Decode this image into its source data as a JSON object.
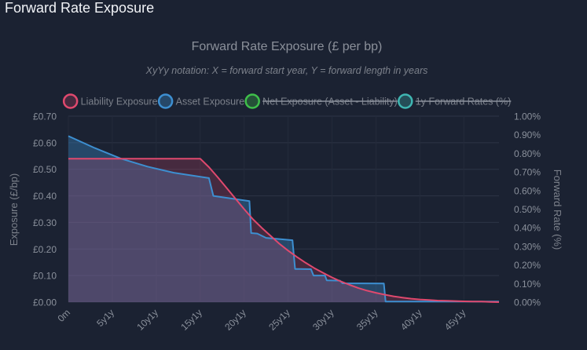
{
  "panel": {
    "title": "Forward Rate Exposure"
  },
  "chart_data": {
    "type": "line",
    "title": "Forward Rate Exposure (£ per bp)",
    "subtitle": "XyYy notation: X = forward start year, Y = forward length in years",
    "ylabel": "Exposure (£/bp)",
    "y2label": "Forward Rate (%)",
    "ylim": [
      0,
      0.7
    ],
    "y2lim": [
      0,
      1.0
    ],
    "yticks": [
      "£0.00",
      "£0.10",
      "£0.20",
      "£0.30",
      "£0.40",
      "£0.50",
      "£0.60",
      "£0.70"
    ],
    "y2ticks": [
      "0.00%",
      "0.10%",
      "0.20%",
      "0.30%",
      "0.40%",
      "0.50%",
      "0.60%",
      "0.70%",
      "0.80%",
      "0.90%",
      "1.00%"
    ],
    "xticks": [
      "0m",
      "5y1y",
      "10y1y",
      "15y1y",
      "20y1y",
      "25y1y",
      "30y1y",
      "35y1y",
      "40y1y",
      "45y1y"
    ],
    "xmax": 49,
    "legend_position": "top",
    "series": [
      {
        "name": "Liability Exposure",
        "color": "#e0496e",
        "fill": "rgba(224,73,110,0.22)",
        "hidden": false,
        "points": [
          [
            0,
            0.54
          ],
          [
            15,
            0.54
          ],
          [
            16,
            0.508
          ],
          [
            17,
            0.47
          ],
          [
            18,
            0.43
          ],
          [
            19,
            0.39
          ],
          [
            20,
            0.35
          ],
          [
            21,
            0.312
          ],
          [
            22,
            0.28
          ],
          [
            23,
            0.25
          ],
          [
            24,
            0.22
          ],
          [
            25,
            0.194
          ],
          [
            26,
            0.17
          ],
          [
            27,
            0.148
          ],
          [
            28,
            0.128
          ],
          [
            29,
            0.11
          ],
          [
            30,
            0.093
          ],
          [
            31,
            0.078
          ],
          [
            32,
            0.065
          ],
          [
            33,
            0.053
          ],
          [
            34,
            0.043
          ],
          [
            35,
            0.035
          ],
          [
            36,
            0.028
          ],
          [
            37,
            0.022
          ],
          [
            38,
            0.017
          ],
          [
            39,
            0.013
          ],
          [
            40,
            0.01
          ],
          [
            41,
            0.008
          ],
          [
            42,
            0.006
          ],
          [
            43,
            0.005
          ],
          [
            44,
            0.004
          ],
          [
            45,
            0.003
          ],
          [
            46,
            0.002
          ],
          [
            47,
            0.002
          ],
          [
            48,
            0.001
          ],
          [
            49,
            0.0
          ]
        ]
      },
      {
        "name": "Asset Exposure",
        "color": "#3d8fd1",
        "fill": "rgba(61,143,209,0.35)",
        "hidden": false,
        "points": [
          [
            0,
            0.625
          ],
          [
            3,
            0.58
          ],
          [
            6,
            0.54
          ],
          [
            9,
            0.51
          ],
          [
            12,
            0.487
          ],
          [
            16,
            0.467
          ],
          [
            16.5,
            0.4
          ],
          [
            20.6,
            0.38
          ],
          [
            20.8,
            0.26
          ],
          [
            21.5,
            0.258
          ],
          [
            22.5,
            0.242
          ],
          [
            25.5,
            0.233
          ],
          [
            25.8,
            0.125
          ],
          [
            27.6,
            0.124
          ],
          [
            27.9,
            0.1
          ],
          [
            29.2,
            0.1
          ],
          [
            29.4,
            0.082
          ],
          [
            30.9,
            0.081
          ],
          [
            31.2,
            0.071
          ],
          [
            35.9,
            0.07
          ],
          [
            36.1,
            0.002
          ],
          [
            49,
            0.002
          ]
        ]
      },
      {
        "name": "Net Exposure (Asset - Liability)",
        "color": "#3fbf4a",
        "fill": "rgba(63,191,74,0.3)",
        "hidden": true,
        "points": []
      },
      {
        "name": "1y Forward Rates (%)",
        "color": "#3fb6b2",
        "fill": "rgba(63,182,178,0.3)",
        "hidden": true,
        "points": []
      }
    ]
  }
}
